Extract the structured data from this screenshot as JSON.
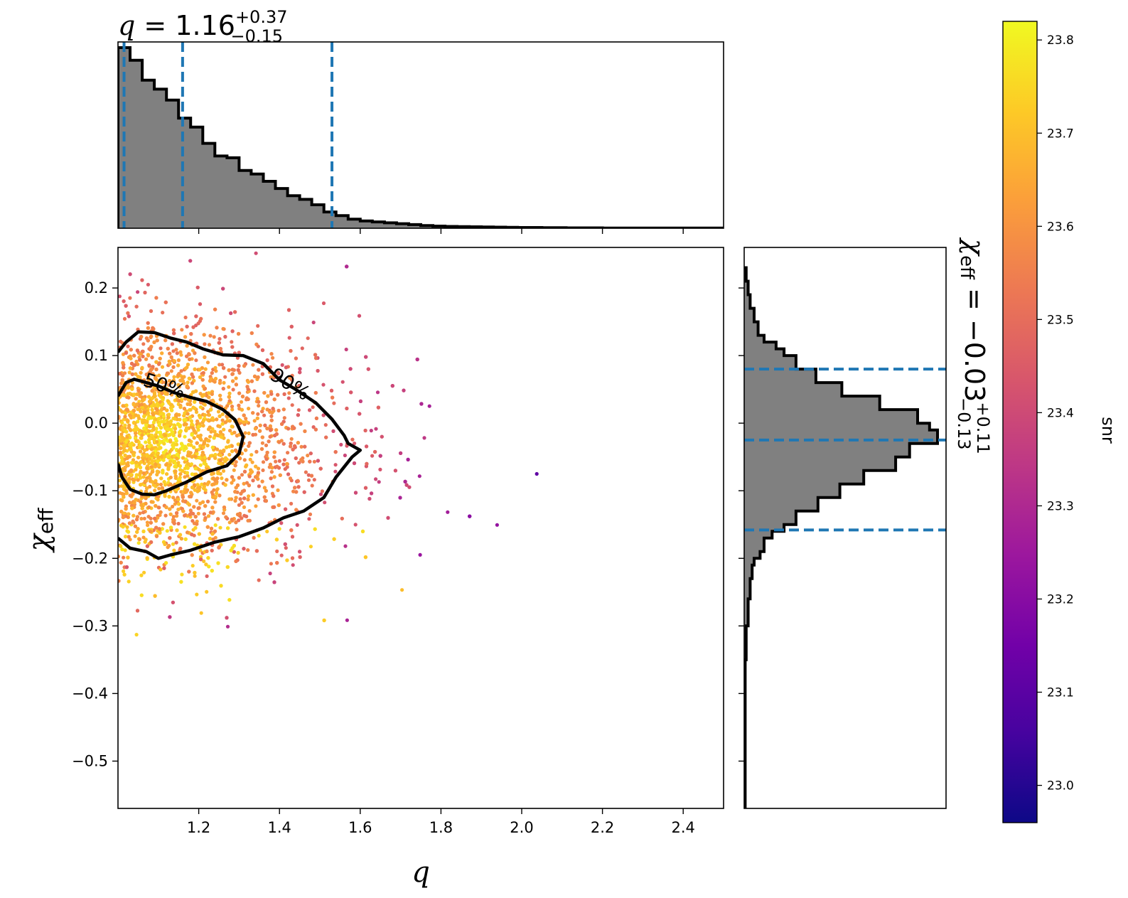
{
  "chart_data": [
    {
      "type": "scatter",
      "name": "joint",
      "xlabel": "q",
      "ylabel": "χ",
      "ylabel_sub": "eff",
      "xlim": [
        1.0,
        2.5
      ],
      "ylim": [
        -0.57,
        0.26
      ],
      "xticks": [
        1.2,
        1.4,
        1.6,
        1.8,
        2.0,
        2.2,
        2.4
      ],
      "xtick_labels": [
        "1.2",
        "1.4",
        "1.6",
        "1.8",
        "2.0",
        "2.2",
        "2.4"
      ],
      "yticks": [
        0.2,
        0.1,
        0.0,
        -0.1,
        -0.2,
        -0.3,
        -0.4,
        -0.5
      ],
      "ytick_labels": [
        "0.2",
        "0.1",
        "0.0",
        "−0.1",
        "−0.2",
        "−0.3",
        "−0.4",
        "−0.5"
      ],
      "colormap": "plasma",
      "color_by": "snr",
      "contour_labels": [
        "50%",
        "90%"
      ],
      "contours": [
        {
          "level": "50%",
          "points": [
            [
              1.0,
              0.04
            ],
            [
              1.02,
              0.06
            ],
            [
              1.04,
              0.065
            ],
            [
              1.07,
              0.06
            ],
            [
              1.1,
              0.055
            ],
            [
              1.14,
              0.045
            ],
            [
              1.18,
              0.038
            ],
            [
              1.22,
              0.032
            ],
            [
              1.26,
              0.02
            ],
            [
              1.29,
              0.005
            ],
            [
              1.31,
              -0.02
            ],
            [
              1.3,
              -0.045
            ],
            [
              1.27,
              -0.063
            ],
            [
              1.22,
              -0.072
            ],
            [
              1.17,
              -0.087
            ],
            [
              1.12,
              -0.1
            ],
            [
              1.09,
              -0.106
            ],
            [
              1.06,
              -0.105
            ],
            [
              1.03,
              -0.098
            ],
            [
              1.01,
              -0.08
            ],
            [
              1.0,
              -0.06
            ]
          ]
        },
        {
          "level": "90%",
          "points": [
            [
              1.0,
              0.105
            ],
            [
              1.02,
              0.12
            ],
            [
              1.05,
              0.135
            ],
            [
              1.09,
              0.134
            ],
            [
              1.13,
              0.126
            ],
            [
              1.17,
              0.12
            ],
            [
              1.21,
              0.11
            ],
            [
              1.26,
              0.101
            ],
            [
              1.31,
              0.1
            ],
            [
              1.36,
              0.088
            ],
            [
              1.4,
              0.064
            ],
            [
              1.44,
              0.05
            ],
            [
              1.49,
              0.03
            ],
            [
              1.53,
              0.006
            ],
            [
              1.56,
              -0.018
            ],
            [
              1.57,
              -0.03
            ],
            [
              1.6,
              -0.04
            ],
            [
              1.58,
              -0.05
            ],
            [
              1.54,
              -0.08
            ],
            [
              1.51,
              -0.11
            ],
            [
              1.46,
              -0.13
            ],
            [
              1.41,
              -0.14
            ],
            [
              1.36,
              -0.155
            ],
            [
              1.3,
              -0.168
            ],
            [
              1.24,
              -0.176
            ],
            [
              1.18,
              -0.188
            ],
            [
              1.13,
              -0.195
            ],
            [
              1.1,
              -0.2
            ],
            [
              1.07,
              -0.19
            ],
            [
              1.03,
              -0.185
            ],
            [
              1.0,
              -0.17
            ]
          ]
        }
      ],
      "scatter_extent": {
        "x": [
          1.0,
          2.5
        ],
        "y": [
          -0.57,
          0.26
        ]
      },
      "scatter_center": {
        "x": 1.15,
        "y": -0.03
      }
    },
    {
      "type": "histogram",
      "name": "q-marginal",
      "title_param": "q",
      "title_median": "1.16",
      "title_plus": "+0.37",
      "title_minus": "−0.15",
      "quantile_lines": [
        1.015,
        1.16,
        1.53
      ],
      "bin_width": 0.03,
      "bin_start": 1.0,
      "heights": [
        1.0,
        0.93,
        0.82,
        0.77,
        0.71,
        0.61,
        0.56,
        0.47,
        0.4,
        0.39,
        0.32,
        0.3,
        0.26,
        0.22,
        0.18,
        0.16,
        0.13,
        0.09,
        0.07,
        0.05,
        0.04,
        0.035,
        0.03,
        0.025,
        0.02,
        0.015,
        0.012,
        0.01,
        0.009,
        0.008,
        0.007,
        0.006,
        0.005,
        0.004,
        0.004,
        0.003,
        0.003,
        0.002,
        0.002,
        0.002,
        0.001,
        0.001,
        0.001,
        0.001,
        0.001,
        0.001,
        0.001,
        0.001,
        0.001,
        0.001
      ]
    },
    {
      "type": "histogram",
      "name": "chi-eff-marginal",
      "title_param": "χ",
      "title_param_sub": "eff",
      "title_median": "−0.03",
      "title_plus": "+0.11",
      "title_minus": "−0.13",
      "quantile_lines": [
        0.08,
        -0.025,
        -0.158
      ],
      "orientation": "horizontal",
      "bin_edges": [
        0.23,
        0.21,
        0.19,
        0.17,
        0.15,
        0.13,
        0.12,
        0.11,
        0.1,
        0.08,
        0.06,
        0.04,
        0.02,
        0.0,
        -0.01,
        -0.03,
        -0.05,
        -0.07,
        -0.09,
        -0.11,
        -0.13,
        -0.15,
        -0.16,
        -0.17,
        -0.19,
        -0.2,
        -0.21,
        -0.23,
        -0.26,
        -0.3,
        -0.35,
        -0.57
      ],
      "counts": [
        0.01,
        0.02,
        0.03,
        0.05,
        0.07,
        0.1,
        0.16,
        0.2,
        0.26,
        0.36,
        0.49,
        0.68,
        0.87,
        0.93,
        0.97,
        0.83,
        0.76,
        0.6,
        0.48,
        0.37,
        0.26,
        0.2,
        0.14,
        0.1,
        0.08,
        0.05,
        0.04,
        0.03,
        0.02,
        0.01,
        0.005
      ]
    },
    {
      "type": "colorbar",
      "name": "snr-colorbar",
      "label": "snr",
      "range": [
        22.96,
        23.82
      ],
      "ticks": [
        23.0,
        23.1,
        23.2,
        23.3,
        23.4,
        23.5,
        23.6,
        23.7,
        23.8
      ],
      "tick_labels": [
        "23.0",
        "23.1",
        "23.2",
        "23.3",
        "23.4",
        "23.5",
        "23.6",
        "23.7",
        "23.8"
      ]
    }
  ],
  "colors": {
    "hist_fill": "#808080",
    "hist_edge": "#000000",
    "quantile_line": "#1f77b4",
    "contour": "#000000",
    "plasma_stops": [
      "#0d0887",
      "#46039f",
      "#7201a8",
      "#9c179e",
      "#bd3786",
      "#d8576b",
      "#ed7953",
      "#fb9f3a",
      "#fdca26",
      "#f0f921"
    ]
  }
}
